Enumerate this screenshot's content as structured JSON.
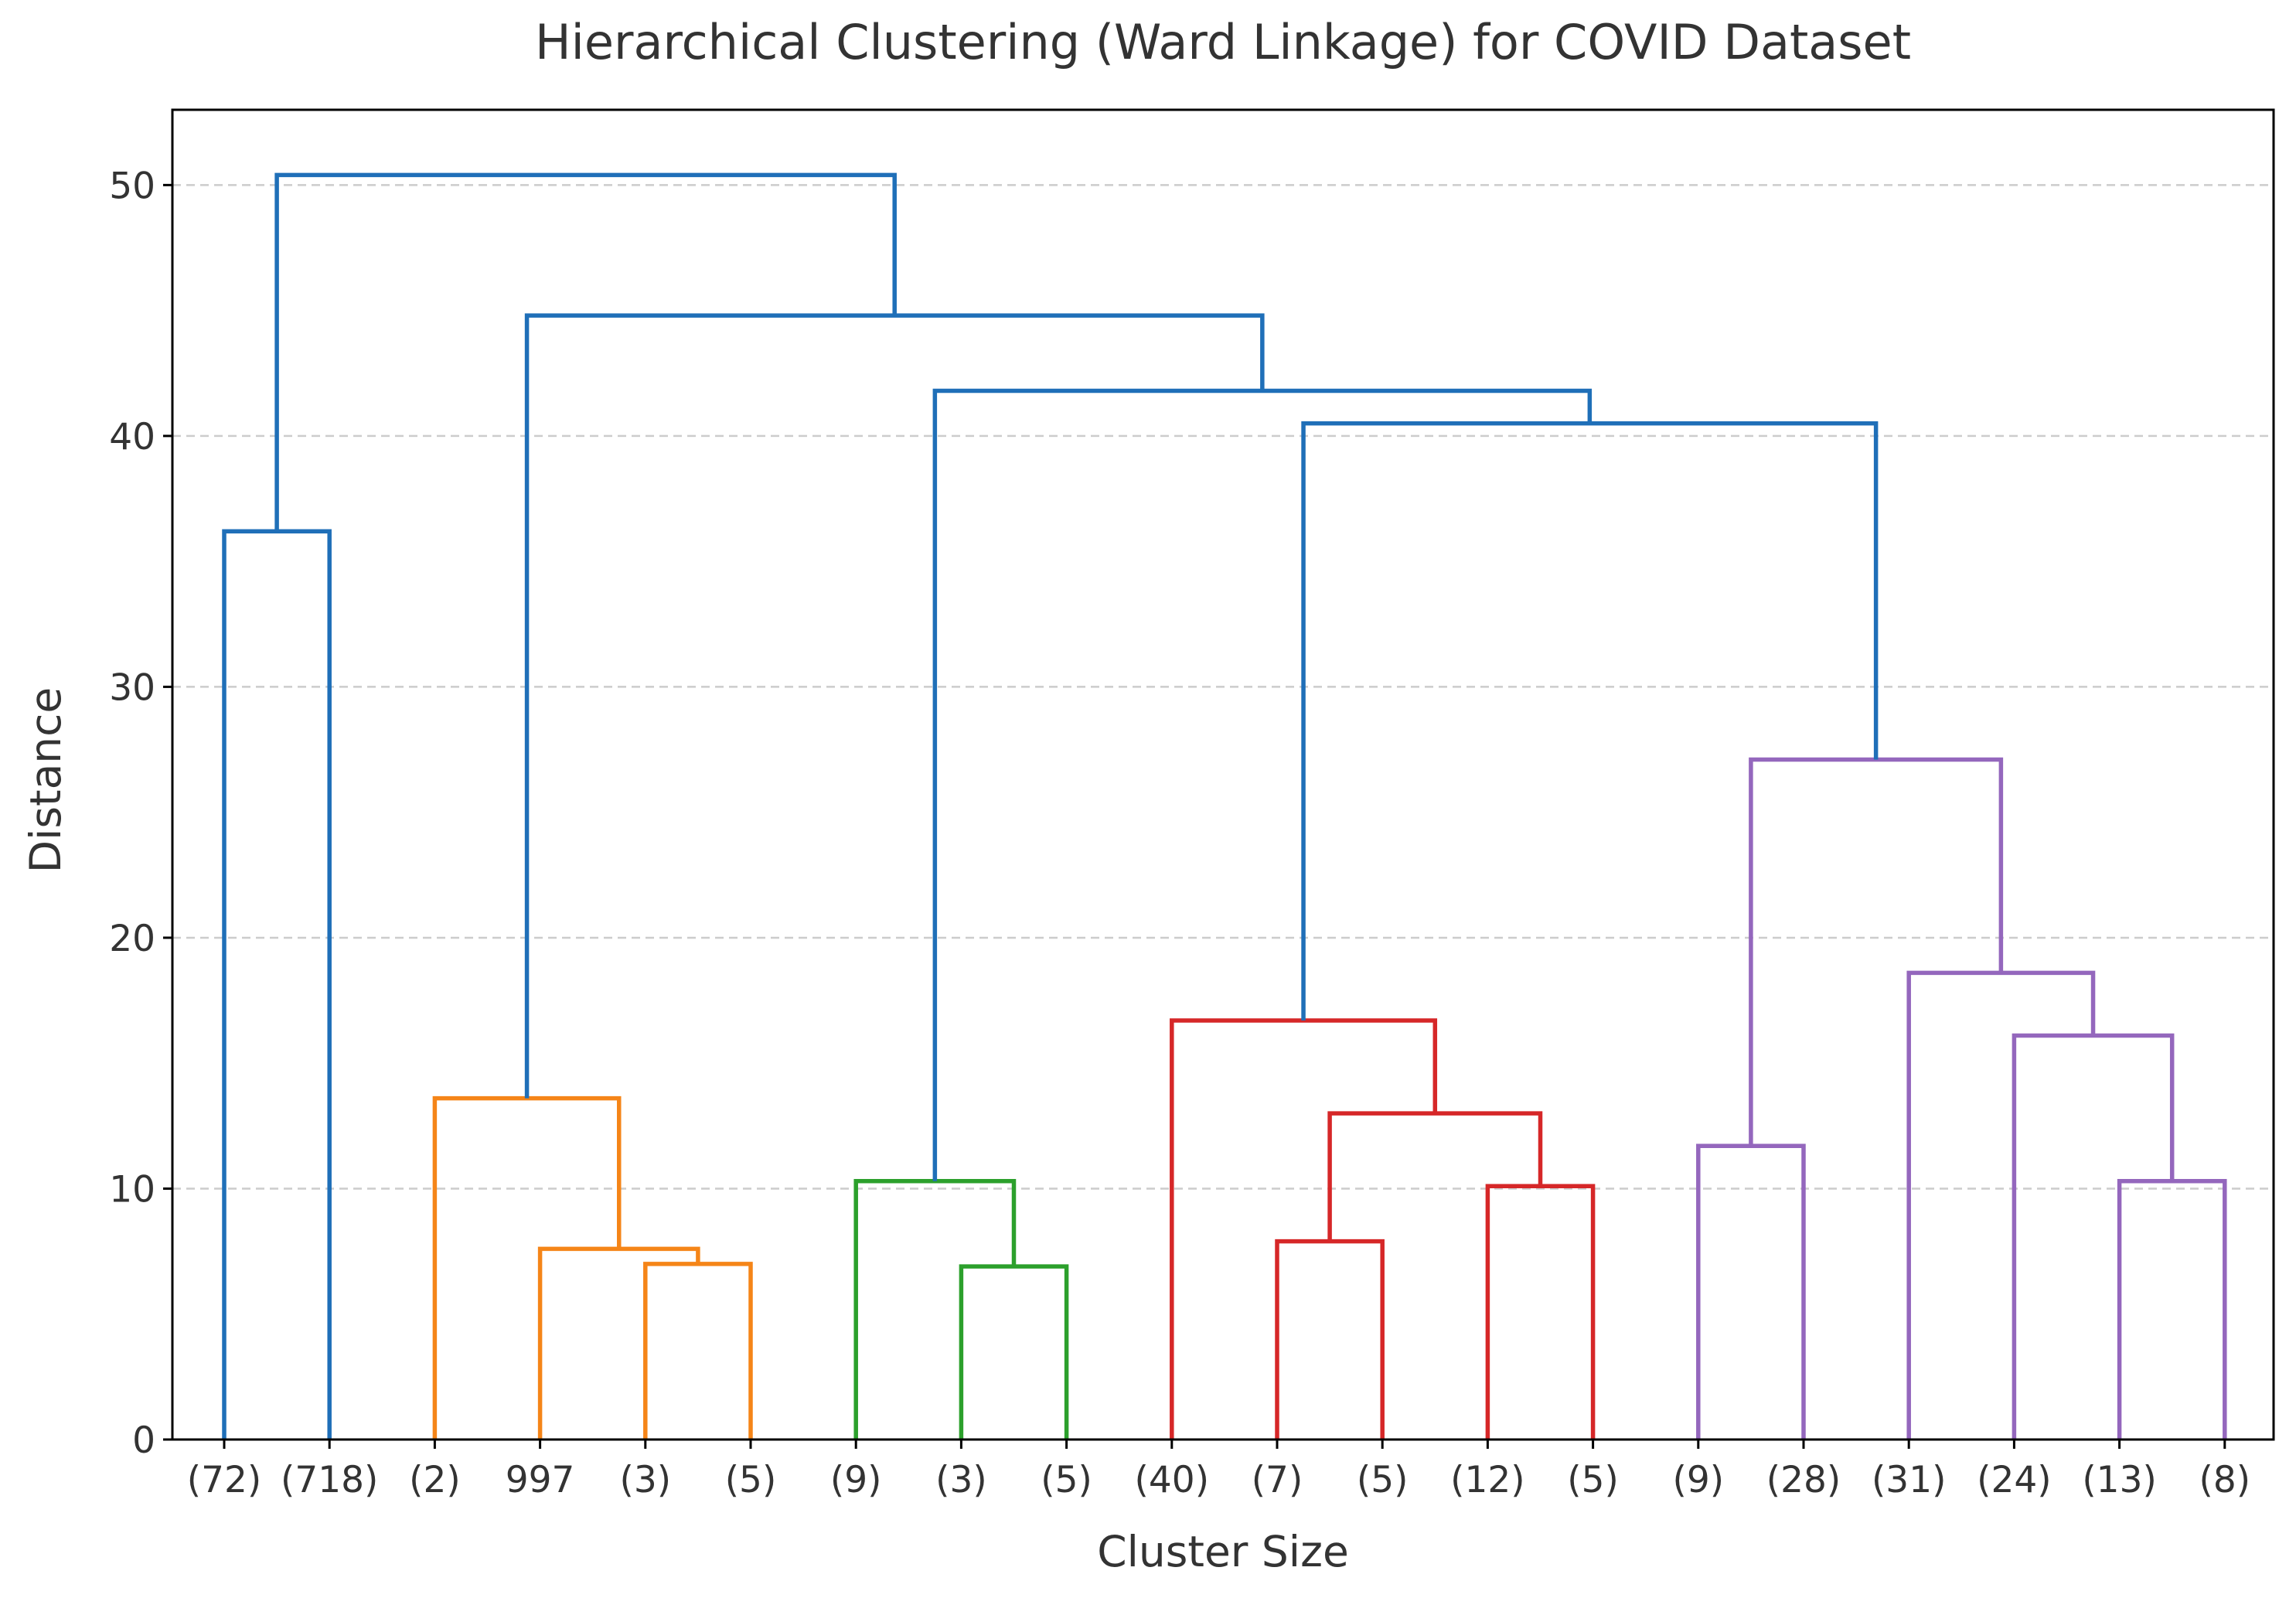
{
  "chart_data": {
    "type": "dendrogram",
    "title": "Hierarchical Clustering (Ward Linkage) for COVID Dataset",
    "xlabel": "Cluster Size",
    "ylabel": "Distance",
    "ylim": [
      0,
      53
    ],
    "yticks": [
      0,
      10,
      20,
      30,
      40,
      50
    ],
    "grid": "horizontal dashed",
    "leaves": [
      "(72)",
      "(718)",
      "(2)",
      "997",
      "(3)",
      "(5)",
      "(9)",
      "(3)",
      "(5)",
      "(40)",
      "(7)",
      "(5)",
      "(12)",
      "(5)",
      "(9)",
      "(28)",
      "(31)",
      "(24)",
      "(13)",
      "(8)"
    ],
    "colors": {
      "above_threshold": "#1f6fb8",
      "cluster_1": "#f58518",
      "cluster_2": "#2ca02c",
      "cluster_3": "#d62728",
      "cluster_4": "#9467bd"
    },
    "merges": [
      {
        "id": "n0",
        "left": 0,
        "right": 1,
        "height": 36.2,
        "color": "above_threshold"
      },
      {
        "id": "n1",
        "left": 4,
        "right": 5,
        "height": 7.0,
        "color": "cluster_1"
      },
      {
        "id": "n2",
        "left": 3,
        "right": "n1",
        "height": 7.6,
        "color": "cluster_1"
      },
      {
        "id": "n3",
        "left": 2,
        "right": "n2",
        "height": 13.6,
        "color": "cluster_1"
      },
      {
        "id": "n4",
        "left": 7,
        "right": 8,
        "height": 6.9,
        "color": "cluster_2"
      },
      {
        "id": "n5",
        "left": 6,
        "right": "n4",
        "height": 10.3,
        "color": "cluster_2"
      },
      {
        "id": "n6",
        "left": 10,
        "right": 11,
        "height": 7.9,
        "color": "cluster_3"
      },
      {
        "id": "n7",
        "left": 12,
        "right": 13,
        "height": 10.1,
        "color": "cluster_3"
      },
      {
        "id": "n8",
        "left": "n6",
        "right": "n7",
        "height": 13.0,
        "color": "cluster_3"
      },
      {
        "id": "n9",
        "left": 9,
        "right": "n8",
        "height": 16.7,
        "color": "cluster_3"
      },
      {
        "id": "n10",
        "left": 14,
        "right": 15,
        "height": 11.7,
        "color": "cluster_4"
      },
      {
        "id": "n11",
        "left": 18,
        "right": 19,
        "height": 10.3,
        "color": "cluster_4"
      },
      {
        "id": "n12",
        "left": 17,
        "right": "n11",
        "height": 16.1,
        "color": "cluster_4"
      },
      {
        "id": "n13",
        "left": 16,
        "right": "n12",
        "height": 18.6,
        "color": "cluster_4"
      },
      {
        "id": "n14",
        "left": "n10",
        "right": "n13",
        "height": 27.1,
        "color": "cluster_4"
      },
      {
        "id": "n15",
        "left": "n9",
        "right": "n14",
        "height": 40.5,
        "color": "above_threshold"
      },
      {
        "id": "n16",
        "left": "n5",
        "right": "n15",
        "height": 41.8,
        "color": "above_threshold"
      },
      {
        "id": "n17",
        "left": "n3",
        "right": "n16",
        "height": 44.8,
        "color": "above_threshold"
      },
      {
        "id": "n18",
        "left": "n0",
        "right": "n17",
        "height": 50.4,
        "color": "above_threshold"
      }
    ]
  }
}
